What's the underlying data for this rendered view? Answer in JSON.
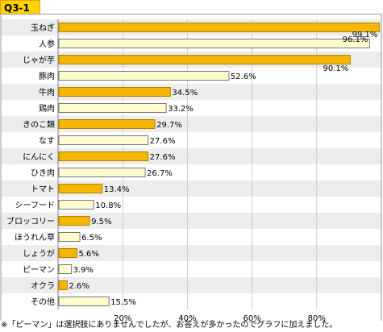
{
  "header": {
    "title": "Q3-1"
  },
  "footnote": "※「ピーマン」は選択肢にありませんでしたが、お答えが多かったのでグラフに加えました。",
  "colors": {
    "bar_highlight": "#f5b800",
    "bar_highlight_border": "#b08000",
    "bar_plain": "#fffcd0",
    "bar_plain_border": "#777777",
    "row_alt": "#ededed",
    "row_base": "#ffffff",
    "grid": "#cccccc"
  },
  "chart_data": {
    "type": "bar",
    "orientation": "horizontal",
    "categories": [
      "玉ねぎ",
      "人参",
      "じゃが芋",
      "豚肉",
      "牛肉",
      "鶏肉",
      "きのこ類",
      "なす",
      "にんにく",
      "ひき肉",
      "トマト",
      "シーフード",
      "ブロッコリー",
      "ほうれん草",
      "しょうが",
      "ピーマン",
      "オクラ",
      "その他"
    ],
    "values": [
      99.1,
      96.1,
      90.1,
      52.6,
      34.5,
      33.2,
      29.7,
      27.6,
      27.6,
      26.7,
      13.4,
      10.8,
      9.5,
      6.5,
      5.6,
      3.9,
      2.6,
      15.5
    ],
    "value_labels": [
      "99.1%",
      "96.1%",
      "90.1%",
      "52.6%",
      "34.5%",
      "33.2%",
      "29.7%",
      "27.6%",
      "27.6%",
      "26.7%",
      "13.4%",
      "10.8%",
      "9.5%",
      "6.5%",
      "5.6%",
      "3.9%",
      "2.6%",
      "15.5%"
    ],
    "highlighted": [
      true,
      false,
      true,
      false,
      true,
      false,
      true,
      false,
      true,
      false,
      true,
      false,
      true,
      false,
      true,
      false,
      true,
      false
    ],
    "x_ticks": [
      20,
      40,
      60,
      80
    ],
    "x_tick_labels": [
      "20%",
      "40%",
      "60%",
      "80%"
    ],
    "xlim": [
      0,
      100
    ],
    "grid": true
  }
}
